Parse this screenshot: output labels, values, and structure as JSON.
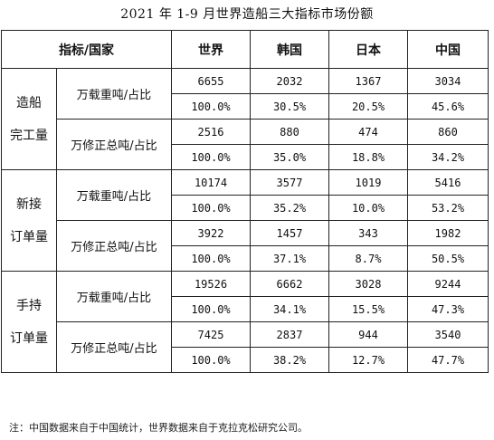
{
  "title": "2021 年 1-9 月世界造船三大指标市场份额",
  "header": {
    "indicator_country": "指标/国家",
    "world": "世界",
    "korea": "韩国",
    "japan": "日本",
    "china": "中国"
  },
  "groups": [
    {
      "category_line1": "造船",
      "category_line2": "完工量",
      "metrics": [
        {
          "label": "万载重吨/占比",
          "values": [
            "6655",
            "2032",
            "1367",
            "3034"
          ],
          "shares": [
            "100.0%",
            "30.5%",
            "20.5%",
            "45.6%"
          ]
        },
        {
          "label": "万修正总吨/占比",
          "values": [
            "2516",
            "880",
            "474",
            "860"
          ],
          "shares": [
            "100.0%",
            "35.0%",
            "18.8%",
            "34.2%"
          ]
        }
      ]
    },
    {
      "category_line1": "新接",
      "category_line2": "订单量",
      "metrics": [
        {
          "label": "万载重吨/占比",
          "values": [
            "10174",
            "3577",
            "1019",
            "5416"
          ],
          "shares": [
            "100.0%",
            "35.2%",
            "10.0%",
            "53.2%"
          ]
        },
        {
          "label": "万修正总吨/占比",
          "values": [
            "3922",
            "1457",
            "343",
            "1982"
          ],
          "shares": [
            "100.0%",
            "37.1%",
            "8.7%",
            "50.5%"
          ]
        }
      ]
    },
    {
      "category_line1": "手持",
      "category_line2": "订单量",
      "metrics": [
        {
          "label": "万载重吨/占比",
          "values": [
            "19526",
            "6662",
            "3028",
            "9244"
          ],
          "shares": [
            "100.0%",
            "34.1%",
            "15.5%",
            "47.3%"
          ]
        },
        {
          "label": "万修正总吨/占比",
          "values": [
            "7425",
            "2837",
            "944",
            "3540"
          ],
          "shares": [
            "100.0%",
            "38.2%",
            "12.7%",
            "47.7%"
          ]
        }
      ]
    }
  ],
  "note": "注：中国数据来自于中国统计，世界数据来自于克拉克松研究公司。"
}
